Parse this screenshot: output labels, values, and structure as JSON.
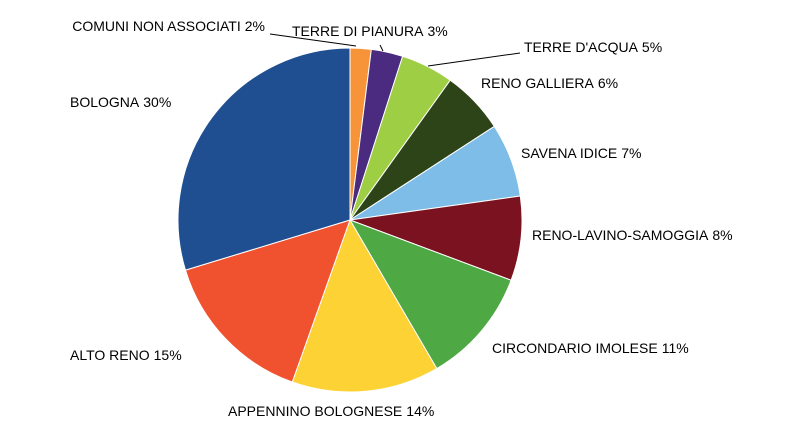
{
  "chart_data": {
    "type": "pie",
    "categories": [
      "COMUNI NON ASSOCIATI",
      "TERRE DI PIANURA",
      "TERRE D'ACQUA",
      "RENO GALLIERA",
      "SAVENA IDICE",
      "RENO-LAVINO-SAMOGGIA",
      "CIRCONDARIO IMOLESE",
      "APPENNINO BOLOGNESE",
      "ALTO RENO",
      "BOLOGNA"
    ],
    "values": [
      2,
      3,
      5,
      6,
      7,
      8,
      11,
      14,
      15,
      30
    ],
    "value_labels": [
      "2%",
      "3%",
      "5%",
      "6%",
      "7%",
      "8%",
      "11%",
      "14%",
      "15%",
      "30%"
    ],
    "colors": [
      "#f7943a",
      "#4b2b7f",
      "#9dce44",
      "#2d4418",
      "#7dbde8",
      "#7b1220",
      "#4ea843",
      "#fdd235",
      "#f0522f",
      "#1f4e91"
    ]
  }
}
